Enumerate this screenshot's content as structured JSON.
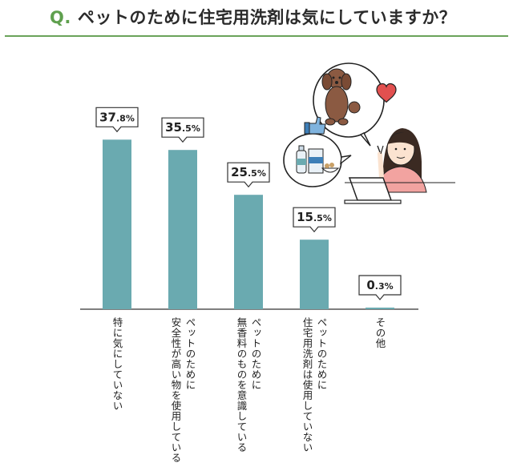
{
  "header": {
    "q_label": "Q.",
    "question": "ペットのために住宅用洗剤は気にしていますか？"
  },
  "colors": {
    "bar": "#6aaab0",
    "accent": "#5fa04e",
    "heart": "#e2504f",
    "dog": "#8b5a42"
  },
  "chart_data": {
    "type": "bar",
    "title": "",
    "xlabel": "",
    "ylabel": "",
    "ylim": [
      0,
      40
    ],
    "grid": false,
    "categories": [
      "特に気にしていない",
      "ペットのために\n安全性が高い物を使用している",
      "ペットのために\n無香料のものを意識している",
      "ペットのために\n住宅用洗剤は使用していない",
      "その他"
    ],
    "values": [
      37.8,
      35.5,
      25.5,
      15.5,
      0.3
    ],
    "value_labels": [
      "37.8%",
      "35.5%",
      "25.5%",
      "15.5%",
      "0.3%"
    ]
  }
}
